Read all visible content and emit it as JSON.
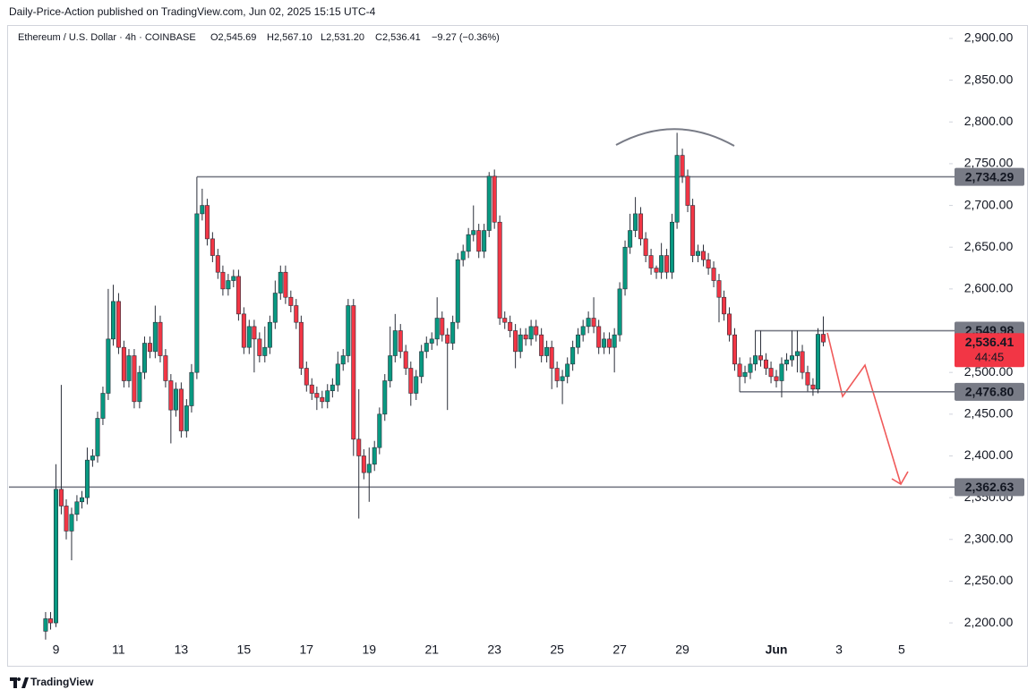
{
  "chart_data": {
    "type": "candlestick",
    "published": "Daily-Price-Action published on TradingView.com, Jun 02, 2025 15:15 UTC-4",
    "legend": {
      "symbol": "Ethereum / U.S. Dollar · 4h · COINBASE",
      "open": "O2,545.69",
      "high": "H2,567.10",
      "low": "L2,531.20",
      "close": "C2,536.41",
      "change": "−9.27 (−0.36%)"
    },
    "brand": "TradingView",
    "up_color": "#089981",
    "down_color": "#f23645",
    "xlim": [
      7.5,
      37.46
    ],
    "xticks": [
      9,
      11,
      13,
      15,
      17,
      19,
      21,
      23,
      25,
      27,
      29,
      {
        "value": 32,
        "label": "Jun"
      },
      {
        "value": 34,
        "label": "3"
      },
      {
        "value": 36,
        "label": "5"
      }
    ],
    "ylim": [
      2176.5,
      2913.9
    ],
    "yticks": [
      {
        "value": 2200,
        "label": "2,200.00"
      },
      {
        "value": 2250,
        "label": "2,250.00"
      },
      {
        "value": 2300,
        "label": "2,300.00"
      },
      {
        "value": 2350,
        "label": "2,350.00"
      },
      {
        "value": 2400,
        "label": "2,400.00"
      },
      {
        "value": 2450,
        "label": "2,450.00"
      },
      {
        "value": 2500,
        "label": "2,500.00"
      },
      {
        "value": 2550,
        "label": "2,550.00"
      },
      {
        "value": 2600,
        "label": "2,600.00"
      },
      {
        "value": 2650,
        "label": "2,650.00"
      },
      {
        "value": 2700,
        "label": "2,700.00"
      },
      {
        "value": 2750,
        "label": "2,750.00"
      },
      {
        "value": 2800,
        "label": "2,800.00"
      },
      {
        "value": 2850,
        "label": "2,850.00"
      },
      {
        "value": 2900,
        "label": "2,900.00"
      }
    ],
    "levels": [
      {
        "value": 2734.29,
        "label": "2,734.29"
      },
      {
        "value": 2549.98,
        "label": "2,549.98"
      },
      {
        "value": 2476.8,
        "label": "2,476.80"
      },
      {
        "value": 2362.63,
        "label": "2,362.63"
      }
    ],
    "last_price": {
      "value": 2536.41,
      "label": "2,536.41",
      "countdown": "44:45",
      "color": "#f23645"
    },
    "candles": {
      "x": [
        8.67,
        8.83,
        9,
        9.17,
        9.33,
        9.5,
        9.67,
        9.83,
        10,
        10.17,
        10.33,
        10.5,
        10.67,
        10.83,
        11,
        11.17,
        11.33,
        11.5,
        11.67,
        11.83,
        12,
        12.17,
        12.33,
        12.5,
        12.67,
        12.83,
        13,
        13.17,
        13.33,
        13.5,
        13.67,
        13.83,
        14,
        14.17,
        14.33,
        14.5,
        14.67,
        14.83,
        15,
        15.17,
        15.33,
        15.5,
        15.67,
        15.83,
        16,
        16.17,
        16.33,
        16.5,
        16.67,
        16.83,
        17,
        17.17,
        17.33,
        17.5,
        17.67,
        17.83,
        18,
        18.17,
        18.33,
        18.5,
        18.67,
        18.83,
        19,
        19.17,
        19.33,
        19.5,
        19.67,
        19.83,
        20,
        20.17,
        20.33,
        20.5,
        20.67,
        20.83,
        21,
        21.17,
        21.33,
        21.5,
        21.67,
        21.83,
        22,
        22.17,
        22.33,
        22.5,
        22.67,
        22.83,
        23,
        23.17,
        23.33,
        23.5,
        23.67,
        23.83,
        24,
        24.17,
        24.33,
        24.5,
        24.67,
        24.83,
        25,
        25.17,
        25.33,
        25.5,
        25.67,
        25.83,
        26,
        26.17,
        26.33,
        26.5,
        26.67,
        26.83,
        27,
        27.17,
        27.33,
        27.5,
        27.67,
        27.83,
        28,
        28.17,
        28.33,
        28.5,
        28.67,
        28.83,
        29,
        29.17,
        29.33,
        29.5,
        29.67,
        29.83,
        30,
        30.17,
        30.33,
        30.5,
        30.67,
        30.83,
        31,
        31.17,
        31.33,
        31.5,
        31.67,
        31.83,
        32,
        32.17,
        32.33,
        32.5,
        32.67,
        32.83,
        33,
        33.17,
        33.33,
        33.5
      ],
      "open": [
        2190,
        2205,
        2200,
        2360,
        2340,
        2310,
        2330,
        2345,
        2350,
        2395,
        2400,
        2445,
        2475,
        2540,
        2585,
        2530,
        2490,
        2520,
        2465,
        2500,
        2535,
        2525,
        2560,
        2520,
        2490,
        2455,
        2480,
        2430,
        2460,
        2500,
        2690,
        2700,
        2660,
        2640,
        2620,
        2600,
        2610,
        2615,
        2570,
        2530,
        2555,
        2540,
        2520,
        2530,
        2560,
        2595,
        2620,
        2590,
        2580,
        2560,
        2505,
        2485,
        2475,
        2470,
        2465,
        2478,
        2485,
        2510,
        2520,
        2580,
        2420,
        2400,
        2380,
        2390,
        2410,
        2450,
        2490,
        2520,
        2550,
        2525,
        2505,
        2475,
        2495,
        2525,
        2535,
        2540,
        2565,
        2545,
        2535,
        2560,
        2635,
        2645,
        2665,
        2670,
        2645,
        2670,
        2735,
        2680,
        2565,
        2560,
        2550,
        2525,
        2545,
        2540,
        2555,
        2545,
        2520,
        2530,
        2505,
        2490,
        2495,
        2510,
        2530,
        2545,
        2555,
        2565,
        2555,
        2530,
        2540,
        2530,
        2545,
        2600,
        2650,
        2670,
        2690,
        2660,
        2640,
        2625,
        2620,
        2640,
        2620,
        2680,
        2760,
        2735,
        2700,
        2640,
        2645,
        2635,
        2625,
        2610,
        2590,
        2570,
        2545,
        2510,
        2495,
        2500,
        2510,
        2520,
        2515,
        2505,
        2495,
        2490,
        2510,
        2515,
        2520,
        2525,
        2500,
        2485,
        2480,
        2545.69
      ],
      "high": [
        2213,
        2213,
        2390,
        2485,
        2348,
        2338,
        2353,
        2358,
        2410,
        2408,
        2453,
        2483,
        2600,
        2605,
        2595,
        2538,
        2528,
        2528,
        2508,
        2543,
        2543,
        2580,
        2568,
        2528,
        2498,
        2488,
        2488,
        2468,
        2510,
        2734.29,
        2720,
        2708,
        2668,
        2648,
        2628,
        2618,
        2623,
        2623,
        2578,
        2563,
        2563,
        2548,
        2555,
        2568,
        2610,
        2628,
        2628,
        2598,
        2588,
        2568,
        2513,
        2493,
        2483,
        2478,
        2486,
        2493,
        2525,
        2528,
        2588,
        2588,
        2480,
        2408,
        2410,
        2418,
        2458,
        2498,
        2555,
        2570,
        2558,
        2533,
        2513,
        2503,
        2533,
        2543,
        2548,
        2590,
        2573,
        2553,
        2568,
        2643,
        2653,
        2673,
        2700,
        2678,
        2678,
        2740,
        2743,
        2688,
        2573,
        2568,
        2558,
        2553,
        2553,
        2563,
        2563,
        2553,
        2538,
        2538,
        2513,
        2503,
        2518,
        2538,
        2553,
        2563,
        2573,
        2590,
        2563,
        2548,
        2548,
        2553,
        2608,
        2658,
        2690,
        2710,
        2698,
        2668,
        2648,
        2628,
        2655,
        2648,
        2690,
        2787,
        2768,
        2743,
        2708,
        2653,
        2653,
        2643,
        2633,
        2618,
        2598,
        2578,
        2553,
        2518,
        2508,
        2518,
        2550,
        2550,
        2523,
        2513,
        2503,
        2518,
        2523,
        2550,
        2550,
        2533,
        2508,
        2493,
        2553,
        2567.1
      ],
      "low": [
        2180,
        2192,
        2195,
        2330,
        2300,
        2275,
        2322,
        2337,
        2342,
        2387,
        2392,
        2437,
        2467,
        2532,
        2522,
        2482,
        2482,
        2457,
        2457,
        2492,
        2517,
        2517,
        2512,
        2482,
        2415,
        2447,
        2422,
        2422,
        2452,
        2492,
        2682,
        2652,
        2632,
        2612,
        2592,
        2592,
        2602,
        2562,
        2522,
        2522,
        2500,
        2512,
        2512,
        2522,
        2552,
        2587,
        2582,
        2572,
        2552,
        2497,
        2477,
        2467,
        2455,
        2457,
        2457,
        2470,
        2477,
        2502,
        2512,
        2400,
        2325,
        2372,
        2345,
        2382,
        2402,
        2442,
        2482,
        2512,
        2517,
        2497,
        2460,
        2467,
        2487,
        2517,
        2527,
        2532,
        2537,
        2455,
        2527,
        2552,
        2627,
        2637,
        2657,
        2637,
        2637,
        2662,
        2672,
        2557,
        2552,
        2542,
        2505,
        2517,
        2532,
        2532,
        2537,
        2512,
        2512,
        2480,
        2482,
        2462,
        2487,
        2502,
        2522,
        2537,
        2547,
        2547,
        2522,
        2522,
        2522,
        2500,
        2537,
        2592,
        2642,
        2662,
        2652,
        2632,
        2617,
        2612,
        2612,
        2612,
        2612,
        2672,
        2727,
        2692,
        2632,
        2632,
        2627,
        2617,
        2602,
        2560,
        2562,
        2537,
        2502,
        2476.8,
        2487,
        2492,
        2502,
        2507,
        2497,
        2487,
        2482,
        2470,
        2502,
        2507,
        2500,
        2492,
        2477,
        2472,
        2475,
        2531.2
      ],
      "close": [
        2205,
        2200,
        2360,
        2340,
        2310,
        2330,
        2345,
        2350,
        2395,
        2400,
        2445,
        2475,
        2540,
        2585,
        2530,
        2490,
        2520,
        2465,
        2500,
        2535,
        2525,
        2560,
        2520,
        2490,
        2455,
        2480,
        2430,
        2460,
        2500,
        2690,
        2700,
        2660,
        2640,
        2620,
        2600,
        2610,
        2615,
        2570,
        2530,
        2555,
        2540,
        2520,
        2530,
        2560,
        2595,
        2620,
        2590,
        2580,
        2560,
        2505,
        2485,
        2475,
        2470,
        2465,
        2478,
        2485,
        2510,
        2520,
        2580,
        2420,
        2400,
        2380,
        2390,
        2410,
        2450,
        2490,
        2520,
        2550,
        2525,
        2505,
        2475,
        2495,
        2525,
        2535,
        2540,
        2565,
        2545,
        2535,
        2560,
        2635,
        2645,
        2665,
        2670,
        2645,
        2670,
        2735,
        2680,
        2565,
        2560,
        2550,
        2525,
        2545,
        2540,
        2555,
        2545,
        2520,
        2530,
        2505,
        2490,
        2495,
        2510,
        2530,
        2545,
        2555,
        2565,
        2555,
        2530,
        2540,
        2530,
        2545,
        2600,
        2650,
        2670,
        2690,
        2660,
        2640,
        2625,
        2620,
        2640,
        2620,
        2680,
        2760,
        2735,
        2700,
        2640,
        2645,
        2635,
        2625,
        2610,
        2590,
        2570,
        2545,
        2510,
        2495,
        2500,
        2510,
        2520,
        2515,
        2505,
        2495,
        2490,
        2510,
        2515,
        2520,
        2525,
        2500,
        2485,
        2480,
        2545.69,
        2536.41
      ]
    }
  }
}
